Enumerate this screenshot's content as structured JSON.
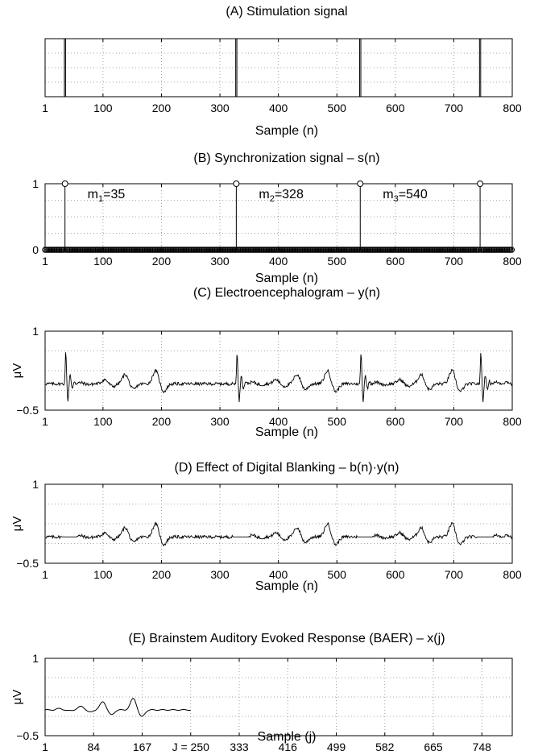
{
  "chart_data": [
    {
      "type": "line",
      "title": "(A) Stimulation signal",
      "xlabel": "Sample (n)",
      "ylabel": "",
      "xlim": [
        1,
        800
      ],
      "ylim": [
        0,
        1
      ],
      "xticks": [
        1,
        100,
        200,
        300,
        400,
        500,
        600,
        700,
        800
      ],
      "xtick_labels": [
        "1",
        "100",
        "200",
        "300",
        "400",
        "500",
        "600",
        "700",
        "800"
      ],
      "yticks": [
        0,
        0.5,
        1
      ],
      "ytick_labels": [
        "",
        "",
        ""
      ],
      "grid": true,
      "pulse_positions": [
        35,
        328,
        540,
        745
      ],
      "pulse_level": 1,
      "baseline": 0
    },
    {
      "type": "stem",
      "title": "(B) Synchronization signal – s(n)",
      "xlabel": "Sample (n)",
      "ylabel": "",
      "xlim": [
        1,
        800
      ],
      "ylim": [
        0,
        1
      ],
      "xticks": [
        1,
        100,
        200,
        300,
        400,
        500,
        600,
        700,
        800
      ],
      "xtick_labels": [
        "1",
        "100",
        "200",
        "300",
        "400",
        "500",
        "600",
        "700",
        "800"
      ],
      "yticks": [
        0,
        1
      ],
      "ytick_labels": [
        "0",
        "1"
      ],
      "grid": true,
      "stem_positions": [
        35,
        328,
        540,
        745
      ],
      "stem_value": 1,
      "annotations": [
        {
          "base": "m",
          "sub": "1",
          "text": "=35",
          "x": 35
        },
        {
          "base": "m",
          "sub": "2",
          "text": "=328",
          "x": 328
        },
        {
          "base": "m",
          "sub": "3",
          "text": "=540",
          "x": 540
        }
      ]
    },
    {
      "type": "line",
      "title": "(C) Electroencephalogram – y(n)",
      "xlabel": "Sample (n)",
      "ylabel": "μV",
      "xlim": [
        1,
        800
      ],
      "ylim": [
        -0.5,
        1
      ],
      "xticks": [
        1,
        100,
        200,
        300,
        400,
        500,
        600,
        700,
        800
      ],
      "xtick_labels": [
        "1",
        "100",
        "200",
        "300",
        "400",
        "500",
        "600",
        "700",
        "800"
      ],
      "yticks": [
        -0.5,
        1
      ],
      "ytick_labels": [
        "−0.5",
        "1"
      ],
      "grid": true,
      "artifact_positions": [
        35,
        328,
        540,
        745
      ],
      "artifact_peak": 0.9,
      "artifact_trough": -0.45,
      "response_peaks": [
        {
          "n": 62,
          "v": 0.02
        },
        {
          "n": 103,
          "v": 0.08
        },
        {
          "n": 138,
          "v": 0.18
        },
        {
          "n": 190,
          "v": 0.25
        },
        {
          "n": 356,
          "v": 0.03
        },
        {
          "n": 396,
          "v": 0.08
        },
        {
          "n": 432,
          "v": 0.18
        },
        {
          "n": 484,
          "v": 0.25
        },
        {
          "n": 568,
          "v": 0.03
        },
        {
          "n": 608,
          "v": 0.08
        },
        {
          "n": 644,
          "v": 0.18
        },
        {
          "n": 697,
          "v": 0.25
        },
        {
          "n": 773,
          "v": 0.03
        },
        {
          "n": 790,
          "v": 0.05
        }
      ]
    },
    {
      "type": "line",
      "title": "(D) Effect of Digital Blanking – b(n)·y(n)",
      "xlabel": "Sample (n)",
      "ylabel": "μV",
      "xlim": [
        1,
        800
      ],
      "ylim": [
        -0.5,
        1
      ],
      "xticks": [
        1,
        100,
        200,
        300,
        400,
        500,
        600,
        700,
        800
      ],
      "xtick_labels": [
        "1",
        "100",
        "200",
        "300",
        "400",
        "500",
        "600",
        "700",
        "800"
      ],
      "yticks": [
        -0.5,
        1
      ],
      "ytick_labels": [
        "−0.5",
        "1"
      ],
      "grid": true,
      "blanked_intervals": [
        [
          30,
          55
        ],
        [
          323,
          349
        ],
        [
          535,
          561
        ],
        [
          740,
          766
        ]
      ],
      "response_peaks": [
        {
          "n": 62,
          "v": 0.02
        },
        {
          "n": 103,
          "v": 0.08
        },
        {
          "n": 138,
          "v": 0.18
        },
        {
          "n": 190,
          "v": 0.25
        },
        {
          "n": 356,
          "v": 0.03
        },
        {
          "n": 396,
          "v": 0.08
        },
        {
          "n": 432,
          "v": 0.18
        },
        {
          "n": 484,
          "v": 0.25
        },
        {
          "n": 568,
          "v": 0.03
        },
        {
          "n": 608,
          "v": 0.08
        },
        {
          "n": 644,
          "v": 0.18
        },
        {
          "n": 697,
          "v": 0.25
        },
        {
          "n": 773,
          "v": 0.03
        },
        {
          "n": 790,
          "v": 0.05
        }
      ]
    },
    {
      "type": "line",
      "title": "(E) Brainstem Auditory Evoked Response (BAER) – x(j)",
      "xlabel": "Sample (j)",
      "ylabel": "μV",
      "xlim": [
        1,
        800
      ],
      "ylim": [
        -0.5,
        1
      ],
      "xticks": [
        1,
        84,
        167,
        250,
        333,
        416,
        499,
        582,
        665,
        748
      ],
      "xtick_labels": [
        "1",
        "84",
        "167",
        "J = 250",
        "333",
        "416",
        "499",
        "582",
        "665",
        "748"
      ],
      "yticks": [
        -0.5,
        1
      ],
      "ytick_labels": [
        "−0.5",
        "1"
      ],
      "grid": true,
      "signal_end": 250,
      "response_peaks": [
        {
          "n": 26,
          "v": 0.03
        },
        {
          "n": 63,
          "v": 0.08
        },
        {
          "n": 100,
          "v": 0.18
        },
        {
          "n": 152,
          "v": 0.25
        }
      ]
    }
  ]
}
